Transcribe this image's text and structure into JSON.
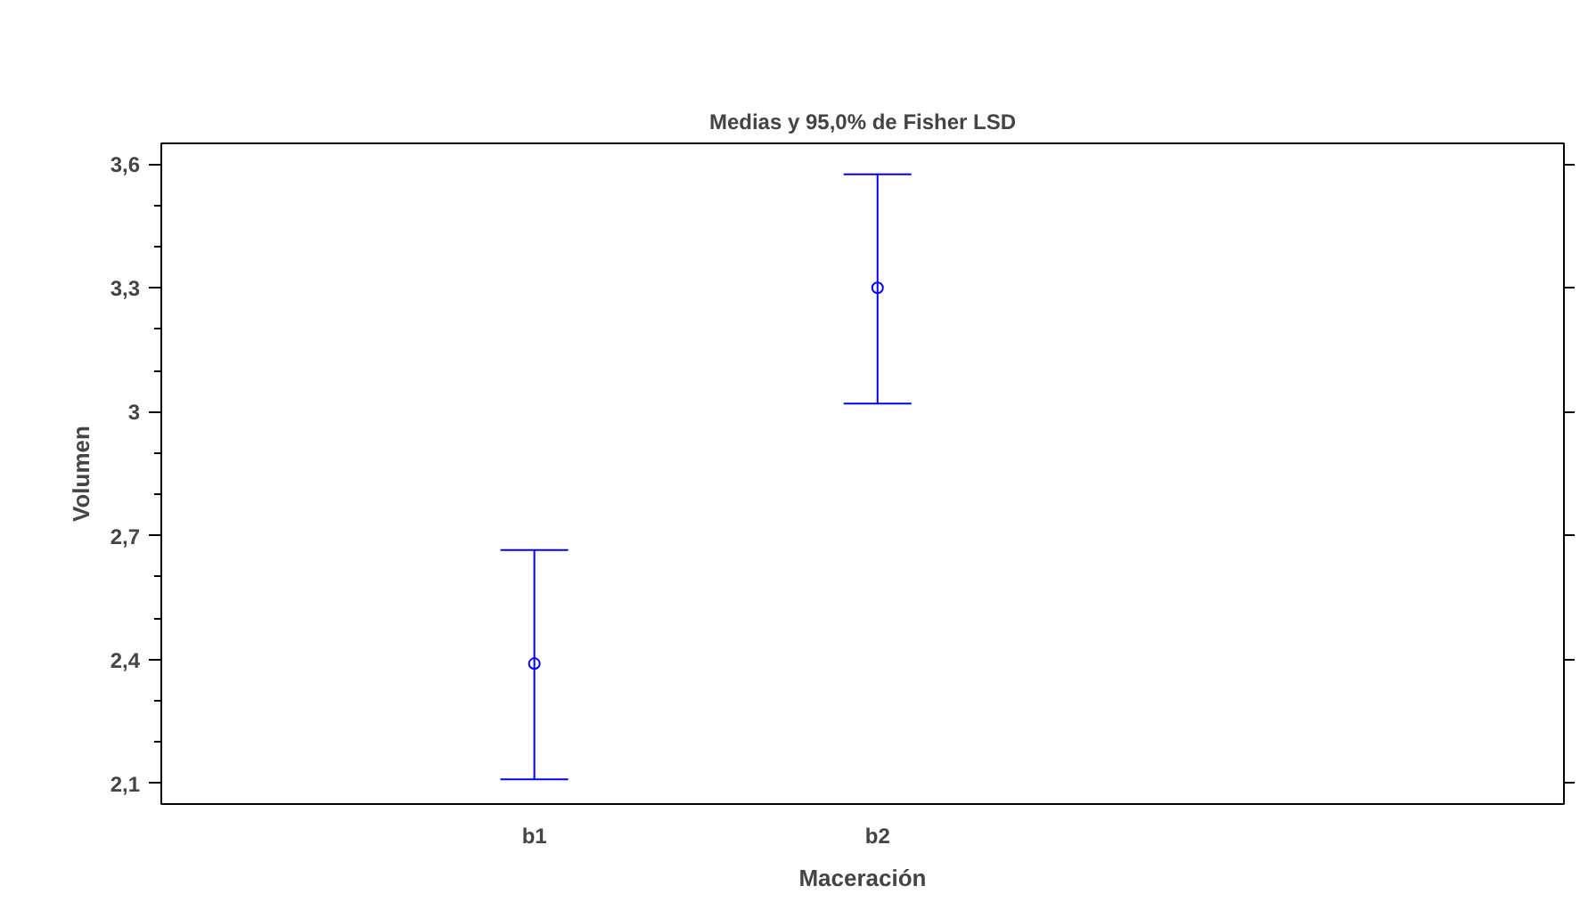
{
  "chart_data": {
    "type": "scatter",
    "title": "Medias y 95,0% de Fisher LSD",
    "xlabel": "Maceración",
    "ylabel": "Volumen",
    "categories": [
      "b1",
      "b2"
    ],
    "series": [
      {
        "color": "#0000ff",
        "values": [
          2.39,
          3.3
        ],
        "errors": [
          [
            2.11,
            2.665
          ],
          [
            3.02,
            3.575
          ]
        ]
      }
    ],
    "ylim": [
      2.05,
      3.65
    ],
    "yticks": [
      {
        "value": 2.1,
        "label": "2,1"
      },
      {
        "value": 2.4,
        "label": "2,4"
      },
      {
        "value": 2.7,
        "label": "2,7"
      },
      {
        "value": 3.0,
        "label": "3"
      },
      {
        "value": 3.3,
        "label": "3,3"
      },
      {
        "value": 3.6,
        "label": "3,6"
      }
    ],
    "grid": false,
    "marker": "circle"
  }
}
